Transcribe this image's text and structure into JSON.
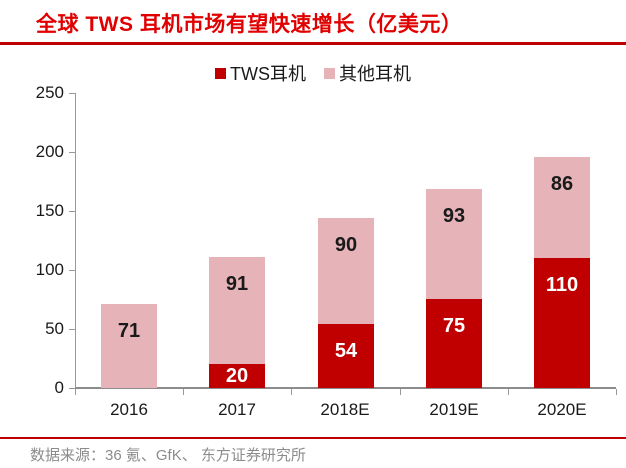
{
  "title": "全球 TWS 耳机市场有望快速增长（亿美元）",
  "source": "数据来源：36 氪、GfK、 东方证券研究所",
  "colors": {
    "title_red": "#E00000",
    "rule_red": "#C00000",
    "tws_red": "#C00000",
    "other_pink": "#E6B4B8",
    "axis_gray": "#999999",
    "xaxis_gray": "#8C8C8C",
    "label_black": "#1A1A1A",
    "label_white": "#FFFFFF",
    "source_gray": "#8C8C8C"
  },
  "legend": {
    "items": [
      {
        "label": "TWS耳机",
        "color": "#C00000"
      },
      {
        "label": "其他耳机",
        "color": "#E6B4B8"
      }
    ]
  },
  "chart_data": {
    "type": "bar",
    "stacked": true,
    "title": "全球 TWS 耳机市场有望快速增长（亿美元）",
    "categories": [
      "2016",
      "2017",
      "2018E",
      "2019E",
      "2020E"
    ],
    "series": [
      {
        "name": "TWS耳机",
        "color": "#C00000",
        "label_color": "#FFFFFF",
        "values": [
          0,
          20,
          54,
          75,
          110
        ]
      },
      {
        "name": "其他耳机",
        "color": "#E6B4B8",
        "label_color": "#1A1A1A",
        "values": [
          71,
          91,
          90,
          93,
          86
        ]
      }
    ],
    "xlabel": "",
    "ylabel": "",
    "ylim": [
      0,
      250
    ],
    "yticks": [
      0,
      50,
      100,
      150,
      200,
      250
    ],
    "grid": false,
    "legend_position": "top"
  }
}
